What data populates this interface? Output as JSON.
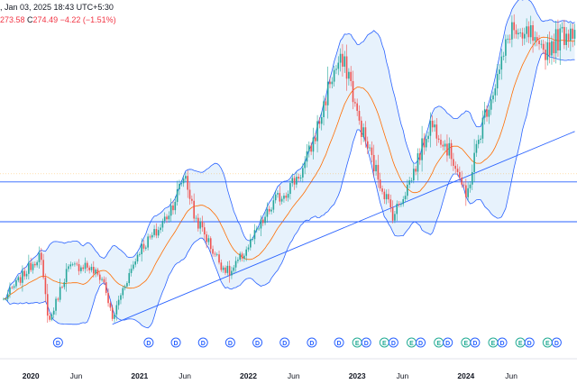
{
  "header": {
    "line1": ", Jan 03, 2025 18:43 UTC+5:30",
    "low_value": "273.58",
    "close_label": "C",
    "close_value": "274.49",
    "change": "−4.22 (−1.51%)"
  },
  "colors": {
    "up": "#26a69a",
    "down": "#ef5350",
    "band": "#2962ff",
    "band_fill": "#e3f0fb",
    "basis": "#ff6d00",
    "hline": "#2962ff",
    "trendline": "#2962ff",
    "event_dividend": "#2962ff",
    "event_earnings": "#22ab94"
  },
  "chart_data": {
    "type": "candlestick",
    "interval": "weekly",
    "overlays": [
      "bollinger-bands",
      "horizontal-line",
      "horizontal-line",
      "trendline"
    ],
    "x_axis": {
      "labels": [
        "2020",
        "Jun",
        "2021",
        "Jun",
        "2022",
        "Jun",
        "2023",
        "Jun",
        "2024",
        "Jun"
      ]
    },
    "y_range": [
      60,
      285
    ],
    "horizontal_lines": [
      172,
      146
    ],
    "trendline": {
      "start": [
        "2020-10",
        79
      ],
      "end": [
        "2025-01",
        205
      ]
    },
    "candles_anchor_close": [
      [
        "2019-10",
        95
      ],
      [
        "2019-12",
        110
      ],
      [
        "2020-02",
        125
      ],
      [
        "2020-03",
        80
      ],
      [
        "2020-05",
        115
      ],
      [
        "2020-07",
        118
      ],
      [
        "2020-09",
        108
      ],
      [
        "2020-10",
        82
      ],
      [
        "2020-11",
        100
      ],
      [
        "2021-01",
        128
      ],
      [
        "2021-03",
        140
      ],
      [
        "2021-04",
        150
      ],
      [
        "2021-05",
        162
      ],
      [
        "2021-06",
        178
      ],
      [
        "2021-07",
        150
      ],
      [
        "2021-08",
        140
      ],
      [
        "2021-09",
        128
      ],
      [
        "2021-10",
        118
      ],
      [
        "2021-11",
        112
      ],
      [
        "2022-01",
        130
      ],
      [
        "2022-02",
        140
      ],
      [
        "2022-04",
        160
      ],
      [
        "2022-05",
        165
      ],
      [
        "2022-07",
        180
      ],
      [
        "2022-08",
        196
      ],
      [
        "2022-09",
        215
      ],
      [
        "2022-10",
        238
      ],
      [
        "2022-11",
        250
      ],
      [
        "2022-12",
        245
      ],
      [
        "2023-01",
        215
      ],
      [
        "2023-03",
        180
      ],
      [
        "2023-04",
        165
      ],
      [
        "2023-05",
        150
      ],
      [
        "2023-07",
        175
      ],
      [
        "2023-08",
        192
      ],
      [
        "2023-09",
        210
      ],
      [
        "2023-10",
        205
      ],
      [
        "2023-12",
        182
      ],
      [
        "2024-01",
        160
      ],
      [
        "2024-02",
        190
      ],
      [
        "2024-03",
        215
      ],
      [
        "2024-05",
        250
      ],
      [
        "2024-06",
        275
      ],
      [
        "2024-07",
        262
      ],
      [
        "2024-08",
        270
      ],
      [
        "2024-09",
        255
      ],
      [
        "2024-11",
        265
      ],
      [
        "2025-01",
        274
      ]
    ],
    "events": [
      {
        "date": "2020-04",
        "type": "dividend",
        "label": "D"
      },
      {
        "date": "2021-02",
        "type": "dividend",
        "label": "D"
      },
      {
        "date": "2021-05",
        "type": "dividend",
        "label": "D"
      },
      {
        "date": "2021-08",
        "type": "dividend",
        "label": "D"
      },
      {
        "date": "2021-11",
        "type": "dividend",
        "label": "D"
      },
      {
        "date": "2022-02",
        "type": "dividend",
        "label": "D"
      },
      {
        "date": "2022-05",
        "type": "dividend",
        "label": "D"
      },
      {
        "date": "2022-08",
        "type": "dividend",
        "label": "D"
      },
      {
        "date": "2022-11",
        "type": "dividend",
        "label": "D"
      },
      {
        "date": "2023-01",
        "type": "earnings",
        "label": "E"
      },
      {
        "date": "2023-02",
        "type": "dividend",
        "label": "D"
      },
      {
        "date": "2023-04",
        "type": "earnings",
        "label": "E"
      },
      {
        "date": "2023-05",
        "type": "dividend",
        "label": "D"
      },
      {
        "date": "2023-07",
        "type": "earnings",
        "label": "E"
      },
      {
        "date": "2023-08",
        "type": "dividend",
        "label": "D"
      },
      {
        "date": "2023-10",
        "type": "earnings",
        "label": "E"
      },
      {
        "date": "2023-11",
        "type": "dividend",
        "label": "D"
      },
      {
        "date": "2024-01",
        "type": "earnings",
        "label": "E"
      },
      {
        "date": "2024-02",
        "type": "dividend",
        "label": "D"
      },
      {
        "date": "2024-04",
        "type": "earnings",
        "label": "E"
      },
      {
        "date": "2024-05",
        "type": "dividend",
        "label": "D"
      },
      {
        "date": "2024-07",
        "type": "earnings",
        "label": "E"
      },
      {
        "date": "2024-08",
        "type": "dividend",
        "label": "D"
      },
      {
        "date": "2024-10",
        "type": "earnings",
        "label": "E"
      },
      {
        "date": "2024-11",
        "type": "dividend",
        "label": "D"
      }
    ]
  }
}
